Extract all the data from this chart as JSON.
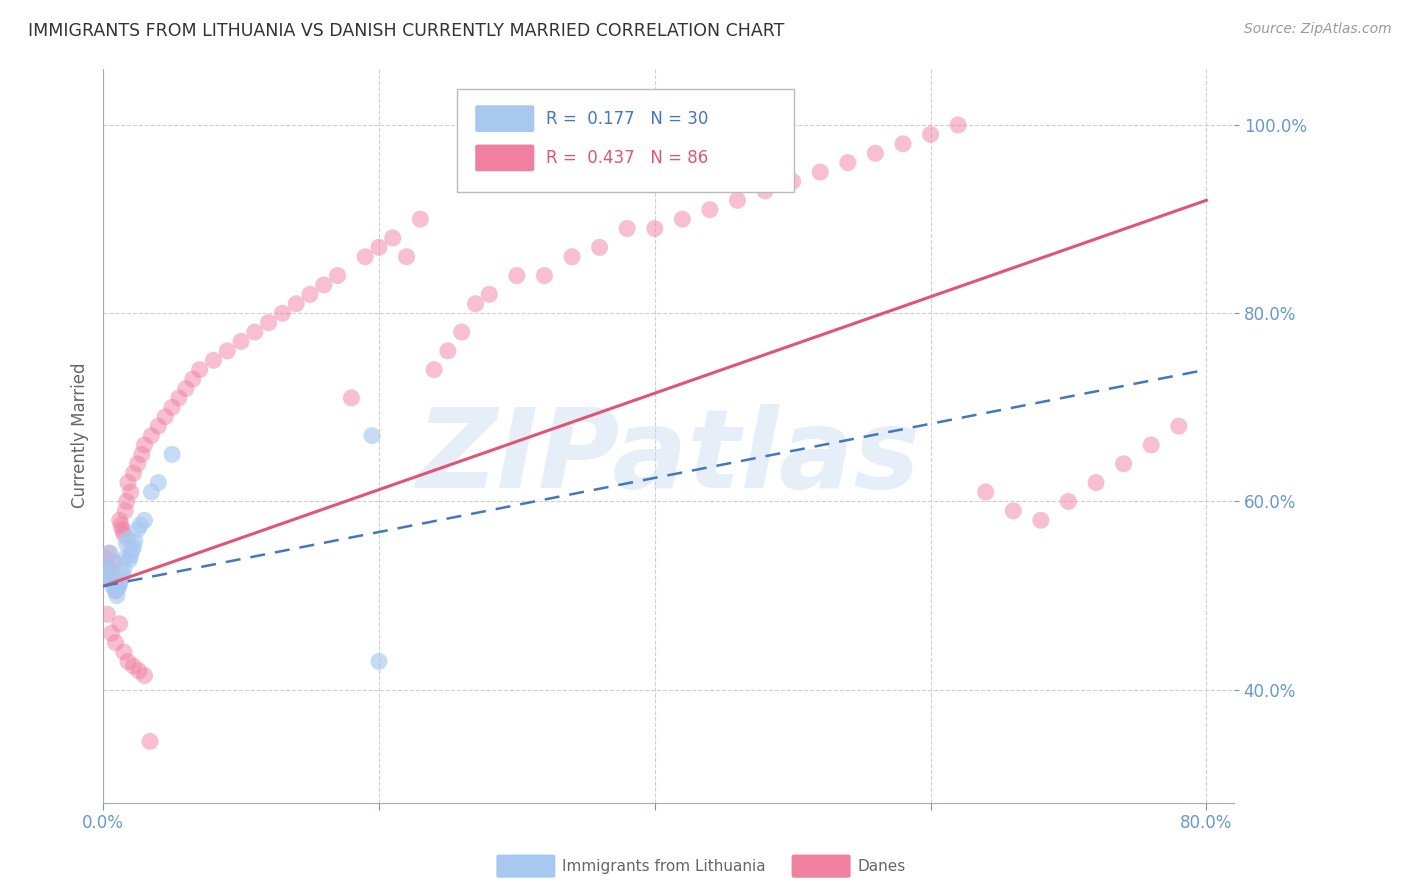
{
  "title": "IMMIGRANTS FROM LITHUANIA VS DANISH CURRENTLY MARRIED CORRELATION CHART",
  "source": "Source: ZipAtlas.com",
  "ylabel": "Currently Married",
  "xlim": [
    0.0,
    0.82
  ],
  "ylim": [
    0.28,
    1.06
  ],
  "yticks": [
    0.4,
    0.6,
    0.8,
    1.0
  ],
  "yticklabels": [
    "40.0%",
    "60.0%",
    "80.0%",
    "100.0%"
  ],
  "xtick_positions": [
    0.0,
    0.2,
    0.4,
    0.6,
    0.8
  ],
  "xticklabels": [
    "0.0%",
    "",
    "",
    "",
    "80.0%"
  ],
  "blue_scatter_x": [
    0.002,
    0.003,
    0.004,
    0.005,
    0.006,
    0.007,
    0.008,
    0.009,
    0.01,
    0.011,
    0.012,
    0.013,
    0.014,
    0.015,
    0.016,
    0.017,
    0.018,
    0.019,
    0.02,
    0.021,
    0.022,
    0.023,
    0.025,
    0.027,
    0.03,
    0.035,
    0.04,
    0.05,
    0.2,
    0.195
  ],
  "blue_scatter_y": [
    0.53,
    0.525,
    0.52,
    0.545,
    0.515,
    0.51,
    0.535,
    0.505,
    0.5,
    0.508,
    0.512,
    0.518,
    0.522,
    0.528,
    0.54,
    0.555,
    0.56,
    0.538,
    0.542,
    0.548,
    0.552,
    0.558,
    0.57,
    0.575,
    0.58,
    0.61,
    0.62,
    0.65,
    0.43,
    0.67
  ],
  "pink_scatter_x": [
    0.002,
    0.003,
    0.004,
    0.005,
    0.006,
    0.007,
    0.008,
    0.009,
    0.01,
    0.011,
    0.012,
    0.013,
    0.014,
    0.015,
    0.016,
    0.017,
    0.018,
    0.02,
    0.022,
    0.025,
    0.028,
    0.03,
    0.035,
    0.04,
    0.045,
    0.05,
    0.055,
    0.06,
    0.065,
    0.07,
    0.08,
    0.09,
    0.1,
    0.11,
    0.12,
    0.13,
    0.14,
    0.15,
    0.16,
    0.17,
    0.18,
    0.19,
    0.2,
    0.21,
    0.22,
    0.23,
    0.24,
    0.25,
    0.26,
    0.27,
    0.28,
    0.3,
    0.32,
    0.34,
    0.36,
    0.38,
    0.4,
    0.42,
    0.44,
    0.46,
    0.48,
    0.5,
    0.52,
    0.54,
    0.56,
    0.58,
    0.6,
    0.62,
    0.64,
    0.66,
    0.68,
    0.7,
    0.72,
    0.74,
    0.76,
    0.78,
    0.003,
    0.006,
    0.009,
    0.012,
    0.015,
    0.018,
    0.022,
    0.026,
    0.03,
    0.034
  ],
  "pink_scatter_y": [
    0.54,
    0.53,
    0.545,
    0.52,
    0.525,
    0.515,
    0.535,
    0.505,
    0.51,
    0.512,
    0.58,
    0.575,
    0.57,
    0.565,
    0.59,
    0.6,
    0.62,
    0.61,
    0.63,
    0.64,
    0.65,
    0.66,
    0.67,
    0.68,
    0.69,
    0.7,
    0.71,
    0.72,
    0.73,
    0.74,
    0.75,
    0.76,
    0.77,
    0.78,
    0.79,
    0.8,
    0.81,
    0.82,
    0.83,
    0.84,
    0.71,
    0.86,
    0.87,
    0.88,
    0.86,
    0.9,
    0.74,
    0.76,
    0.78,
    0.81,
    0.82,
    0.84,
    0.84,
    0.86,
    0.87,
    0.89,
    0.89,
    0.9,
    0.91,
    0.92,
    0.93,
    0.94,
    0.95,
    0.96,
    0.97,
    0.98,
    0.99,
    1.0,
    0.61,
    0.59,
    0.58,
    0.6,
    0.62,
    0.64,
    0.66,
    0.68,
    0.48,
    0.46,
    0.45,
    0.47,
    0.44,
    0.43,
    0.425,
    0.42,
    0.415,
    0.345
  ],
  "blue_line_x": [
    0.0,
    0.8
  ],
  "blue_line_y": [
    0.51,
    0.74
  ],
  "pink_line_x": [
    0.0,
    0.8
  ],
  "pink_line_y": [
    0.51,
    0.92
  ],
  "bg_color": "#ffffff",
  "grid_color": "#d0d0d0",
  "tick_color": "#6699cc",
  "title_color": "#333333",
  "scatter_blue_color": "#a8c8f0",
  "scatter_pink_color": "#f080a0",
  "trend_blue_color": "#4477bb",
  "trend_pink_color": "#e05575",
  "watermark_color": "#c8ddf0",
  "watermark_text": "ZIPatlas",
  "legend_box_color_blue": "#a8c8f0",
  "legend_box_color_pink": "#f080a0",
  "r_blue": "0.177",
  "n_blue": "30",
  "r_pink": "0.437",
  "n_pink": "86"
}
